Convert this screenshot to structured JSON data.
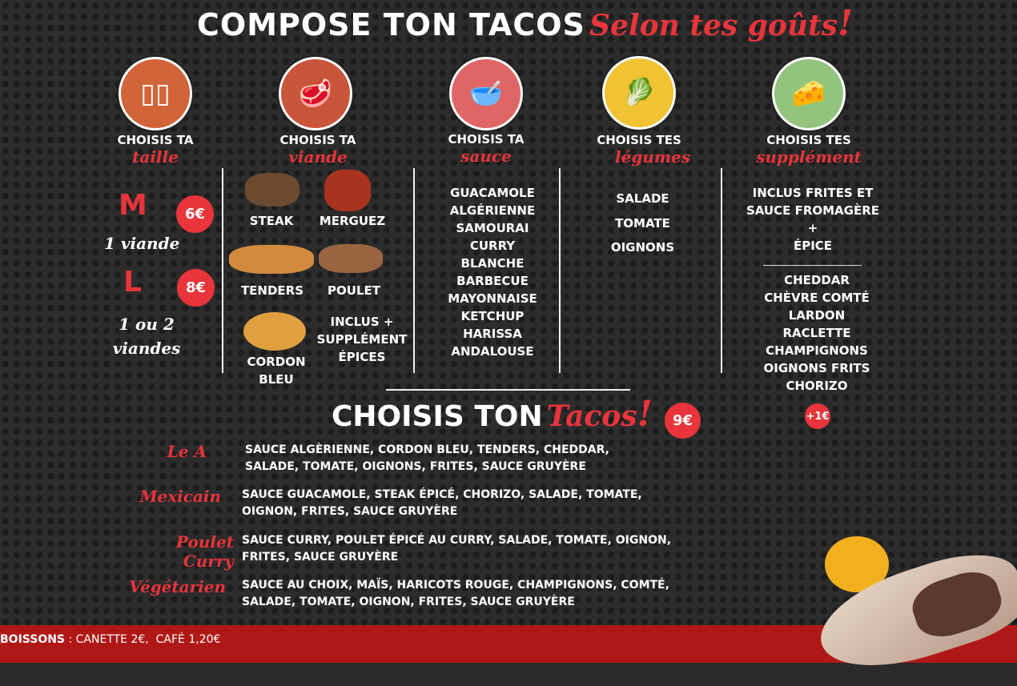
{
  "header": {
    "title": "COMPOSE TON TACOS",
    "script": "Selon tes goûts",
    "excl": "!"
  },
  "columns": [
    {
      "top": "CHOISIS TA",
      "script": "taille",
      "icon": "tortilla-sizes-icon"
    },
    {
      "top": "CHOISIS TA",
      "script": "viande",
      "icon": "meat-icon"
    },
    {
      "top": "CHOISIS TA",
      "script": "sauce",
      "icon": "sauce-bowl-icon"
    },
    {
      "top": "CHOISIS TES",
      "script": "légumes",
      "icon": "vegetables-icon"
    },
    {
      "top": "CHOISIS TES",
      "script": "supplément",
      "icon": "cheese-supplement-icon"
    }
  ],
  "sizes": [
    {
      "size": "M",
      "desc": "1 viande",
      "price": "6€"
    },
    {
      "size": "L",
      "desc": "1 ou 2 viandes",
      "price": "8€"
    }
  ],
  "meats": [
    "STEAK",
    "MERGUEZ",
    "TENDERS",
    "POULET",
    "CORDON BLEU"
  ],
  "meat_note": "INCLUS + SUPPLÉMENT ÉPICES",
  "sauces": [
    "GUACAMOLE",
    "ALGÉRIENNE",
    "SAMOURAI",
    "CURRY",
    "BLANCHE",
    "BARBECUE",
    "MAYONNAISE",
    "KETCHUP",
    "HARISSA",
    "ANDALOUSE"
  ],
  "vegetables": [
    "SALADE",
    "TOMATE",
    "OIGNONS"
  ],
  "supplements": {
    "included": "INCLUS FRITES ET SAUCE FROMAGÈRE",
    "plus": "+",
    "spice": "ÉPICE",
    "items": [
      "CHEDDAR",
      "CHÈVRE COMTÉ",
      "LARDON",
      "RACLETTE",
      "CHAMPIGNONS",
      "OIGNONS FRITS",
      "CHORIZO"
    ],
    "price": "+1€"
  },
  "tacos": {
    "title": "CHOISIS TON",
    "script": "Tacos",
    "excl": "!",
    "price": "9€",
    "items": [
      {
        "name": "Le A",
        "desc": "SAUCE ALGÈRIENNE, CORDON BLEU, TENDERS, CHEDDAR, SALADE, TOMATE, OIGNONS, FRITES, SAUCE GRUYÈRE"
      },
      {
        "name": "Mexicain",
        "desc": "SAUCE GUACAMOLE, STEAK ÉPICÉ, CHORIZO, SALADE, TOMATE, OIGNON, FRITES, SAUCE GRUYÈRE"
      },
      {
        "name": "Poulet Curry",
        "desc": "SAUCE CURRY, POULET ÉPICÉ AU CURRY, SALADE, TOMATE, OIGNON, FRITES, SAUCE GRUYÈRE"
      },
      {
        "name": "Végétarien",
        "desc": "SAUCE AU CHOIX, MAÏS, HARICOTS ROUGE, CHAMPIGNONS, COMTÉ, SALADE, TOMATE, OIGNON, FRITES, SAUCE GRUYÈRE"
      }
    ]
  },
  "footer": {
    "label": "BOISSONS",
    "text": " : CANETTE 2€,  CAFÉ 1,20€"
  },
  "colors": {
    "accent": "#e8343a",
    "footer": "#b01818",
    "background": "#2c2c2c"
  }
}
